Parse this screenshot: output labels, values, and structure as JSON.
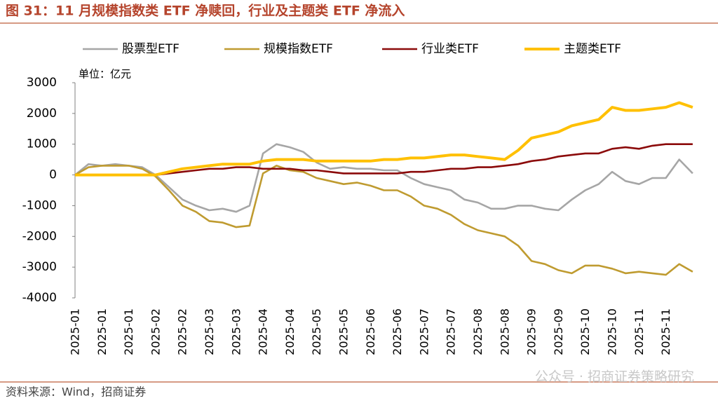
{
  "title": "图 31：11 月规模指数类 ETF 净赎回，行业及主题类 ETF 净流入",
  "source": "资料来源：Wind，招商证券",
  "watermark": "公众号 · 招商证券策略研究",
  "chart_data": {
    "type": "line",
    "unit": "单位：亿元",
    "categories": [
      "2025-01",
      null,
      "2025-01",
      null,
      "2025-01",
      null,
      "2025-02",
      null,
      "2025-02",
      null,
      "2025-03",
      null,
      "2025-03",
      null,
      "2025-04",
      null,
      "2025-04",
      null,
      "2025-05",
      null,
      "2025-05",
      null,
      "2025-06",
      null,
      "2025-06",
      null,
      "2025-07",
      null,
      "2025-07",
      null,
      "2025-08",
      null,
      "2025-08",
      null,
      "2025-09",
      null,
      "2025-09",
      null,
      "2025-10",
      null,
      "2025-10",
      null,
      "2025-11",
      null,
      "2025-11",
      null,
      null
    ],
    "series": [
      {
        "name": "股票型ETF",
        "color": "#a6a6a6",
        "values": [
          0,
          350,
          300,
          350,
          300,
          250,
          0,
          -400,
          -800,
          -1000,
          -1150,
          -1100,
          -1200,
          -1000,
          700,
          1000,
          900,
          750,
          400,
          200,
          250,
          200,
          200,
          150,
          150,
          -100,
          -300,
          -400,
          -500,
          -800,
          -900,
          -1100,
          -1100,
          -1000,
          -1000,
          -1100,
          -1150,
          -800,
          -500,
          -300,
          100,
          -200,
          -300,
          -100,
          -100,
          500,
          50
        ]
      },
      {
        "name": "规模指数ETF",
        "color": "#bf9b30",
        "values": [
          0,
          250,
          300,
          300,
          300,
          200,
          -50,
          -500,
          -1000,
          -1200,
          -1500,
          -1550,
          -1700,
          -1650,
          50,
          300,
          150,
          100,
          -100,
          -200,
          -300,
          -250,
          -350,
          -500,
          -500,
          -700,
          -1000,
          -1100,
          -1300,
          -1600,
          -1800,
          -1900,
          -2000,
          -2300,
          -2800,
          -2900,
          -3100,
          -3200,
          -2950,
          -2950,
          -3050,
          -3200,
          -3150,
          -3200,
          -3250,
          -2900,
          -3150
        ]
      },
      {
        "name": "行业类ETF",
        "color": "#8b0a0a",
        "values": [
          0,
          0,
          0,
          0,
          0,
          0,
          0,
          50,
          100,
          150,
          200,
          200,
          250,
          250,
          200,
          200,
          200,
          150,
          150,
          100,
          50,
          50,
          50,
          50,
          50,
          100,
          100,
          150,
          200,
          200,
          250,
          250,
          300,
          350,
          450,
          500,
          600,
          650,
          700,
          700,
          850,
          900,
          850,
          950,
          1000,
          1000,
          1000
        ]
      },
      {
        "name": "主题类ETF",
        "color": "#ffc000",
        "values": [
          0,
          0,
          0,
          0,
          0,
          0,
          0,
          100,
          200,
          250,
          300,
          350,
          350,
          350,
          450,
          500,
          500,
          500,
          450,
          450,
          450,
          450,
          450,
          500,
          500,
          550,
          550,
          600,
          650,
          650,
          600,
          550,
          500,
          800,
          1200,
          1300,
          1400,
          1600,
          1700,
          1800,
          2200,
          2100,
          2100,
          2150,
          2200,
          2350,
          2200
        ]
      }
    ],
    "ylim": [
      -4000,
      3000
    ],
    "yticks": [
      -4000,
      -3000,
      -2000,
      -1000,
      0,
      1000,
      2000,
      3000
    ]
  }
}
